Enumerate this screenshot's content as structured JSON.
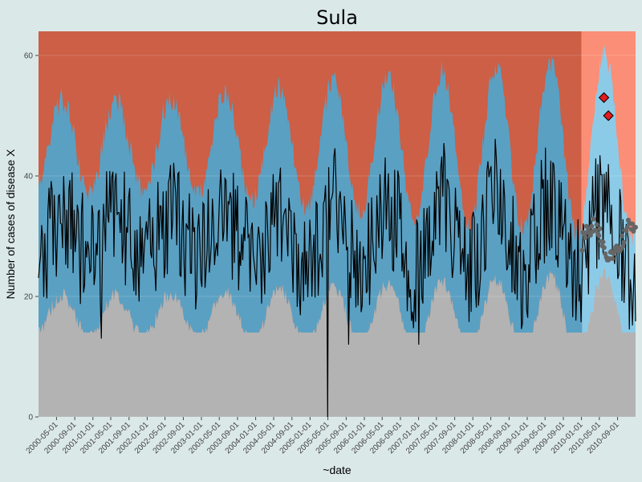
{
  "chart_data": {
    "type": "area",
    "title": "Sula",
    "xlabel": "~date",
    "ylabel": "Number of cases of disease X",
    "ylim": [
      0,
      64
    ],
    "y_ticks": [
      0,
      20,
      40,
      60
    ],
    "x_range": [
      "2000-01-01",
      "2010-12-31"
    ],
    "x_tick_labels": [
      "2000-05-01",
      "2000-09-01",
      "2001-01-01",
      "2001-05-01",
      "2001-09-01",
      "2002-01-01",
      "2002-05-01",
      "2002-09-01",
      "2003-01-01",
      "2003-05-01",
      "2003-09-01",
      "2004-01-01",
      "2004-05-01",
      "2004-09-01",
      "2005-01-01",
      "2005-05-01",
      "2005-09-01",
      "2006-01-01",
      "2006-05-01",
      "2006-09-01",
      "2007-01-01",
      "2007-05-01",
      "2007-09-01",
      "2008-01-01",
      "2008-05-01",
      "2008-09-01",
      "2009-01-01",
      "2009-05-01",
      "2009-09-01",
      "2010-01-01",
      "2010-05-01",
      "2010-09-01"
    ],
    "monitoring_start": "2010-01-01",
    "grid": true,
    "colors": {
      "background": "#dbe8e8",
      "upper_historic": "#cc5f45",
      "upper_monitor": "#fb8e76",
      "normal_historic": "#5aa0c3",
      "normal_monitor": "#8ccbe8",
      "lower": "#b3b3b3",
      "observed_line": "#000000",
      "expected_points": "#666666",
      "alarm": "#e41a1c"
    },
    "alarms": [
      {
        "date": "2010-06-01",
        "value": 53
      },
      {
        "date": "2010-07-01",
        "value": 50
      }
    ],
    "notable_points": [
      {
        "date": "2005-05-01",
        "value": 0
      },
      {
        "date": "2001-03-01",
        "value": 13
      },
      {
        "date": "2005-09-15",
        "value": 12
      },
      {
        "date": "2007-01-01",
        "value": 12
      }
    ]
  }
}
